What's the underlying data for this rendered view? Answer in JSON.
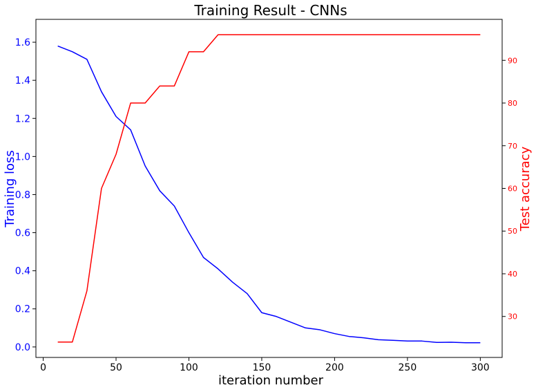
{
  "chart_data": {
    "type": "line",
    "title": "Training Result - CNNs",
    "xlabel": "iteration number",
    "ylabel_left": "Training loss",
    "ylabel_right": "Test accuracy",
    "xlim": [
      -5,
      315
    ],
    "ylim_left": [
      -0.055,
      1.72
    ],
    "ylim_right": [
      20.4,
      99.6
    ],
    "x_ticks": [
      0,
      50,
      100,
      150,
      200,
      250,
      300
    ],
    "y_left_ticks": [
      0.0,
      0.2,
      0.4,
      0.6,
      0.8,
      1.0,
      1.2,
      1.4,
      1.6
    ],
    "y_right_ticks": [
      30,
      40,
      50,
      60,
      70,
      80,
      90
    ],
    "grid": false,
    "colors": {
      "loss": "#0000ff",
      "accuracy": "#ff0000",
      "axis": "#000000"
    },
    "x": [
      10,
      20,
      30,
      40,
      50,
      60,
      70,
      80,
      90,
      100,
      110,
      120,
      130,
      140,
      150,
      160,
      170,
      180,
      190,
      200,
      210,
      220,
      230,
      240,
      250,
      260,
      270,
      280,
      290,
      300
    ],
    "series": [
      {
        "axis": "left",
        "color": "#0000ff",
        "values": [
          1.58,
          1.55,
          1.51,
          1.34,
          1.21,
          1.14,
          0.95,
          0.82,
          0.74,
          0.6,
          0.47,
          0.41,
          0.34,
          0.28,
          0.18,
          0.16,
          0.13,
          0.1,
          0.09,
          0.07,
          0.055,
          0.048,
          0.038,
          0.035,
          0.031,
          0.031,
          0.024,
          0.025,
          0.022,
          0.022
        ]
      },
      {
        "axis": "right",
        "color": "#ff0000",
        "values": [
          24,
          24,
          36,
          60,
          68,
          80,
          80,
          84,
          84,
          92,
          92,
          96,
          96,
          96,
          96,
          96,
          96,
          96,
          96,
          96,
          96,
          96,
          96,
          96,
          96,
          96,
          96,
          96,
          96,
          96
        ]
      }
    ]
  }
}
